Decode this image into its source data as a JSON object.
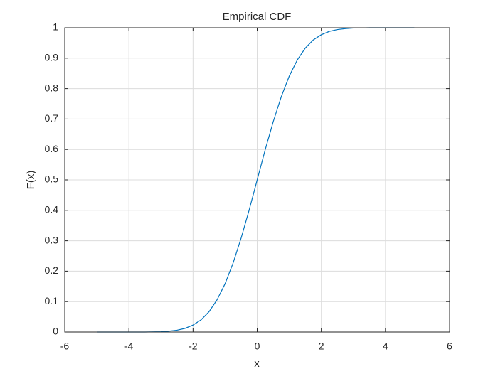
{
  "chart_data": {
    "type": "line",
    "title": "Empirical CDF",
    "xlabel": "x",
    "ylabel": "F(x)",
    "x": [
      -5,
      -4.5,
      -4,
      -3.5,
      -3,
      -2.75,
      -2.5,
      -2.25,
      -2,
      -1.75,
      -1.5,
      -1.25,
      -1,
      -0.75,
      -0.5,
      -0.25,
      0,
      0.25,
      0.5,
      0.75,
      1,
      1.25,
      1.5,
      1.75,
      2,
      2.25,
      2.5,
      2.75,
      3,
      3.5,
      4,
      4.5,
      4.9
    ],
    "series": [
      {
        "color": "#0072bd",
        "values": [
          0,
          0,
          0,
          0,
          0.001,
          0.003,
          0.006,
          0.012,
          0.023,
          0.04,
          0.067,
          0.106,
          0.159,
          0.227,
          0.309,
          0.401,
          0.5,
          0.599,
          0.691,
          0.773,
          0.841,
          0.894,
          0.933,
          0.96,
          0.977,
          0.988,
          0.994,
          0.997,
          0.999,
          1,
          1,
          1,
          1
        ]
      }
    ],
    "xlim": [
      -6,
      6
    ],
    "xticks": [
      -6,
      -4,
      -2,
      0,
      2,
      4,
      6
    ],
    "ylim": [
      0,
      1
    ],
    "yticks": [
      0,
      0.1,
      0.2,
      0.3,
      0.4,
      0.5,
      0.6,
      0.7,
      0.8,
      0.9,
      1
    ],
    "grid": true
  }
}
